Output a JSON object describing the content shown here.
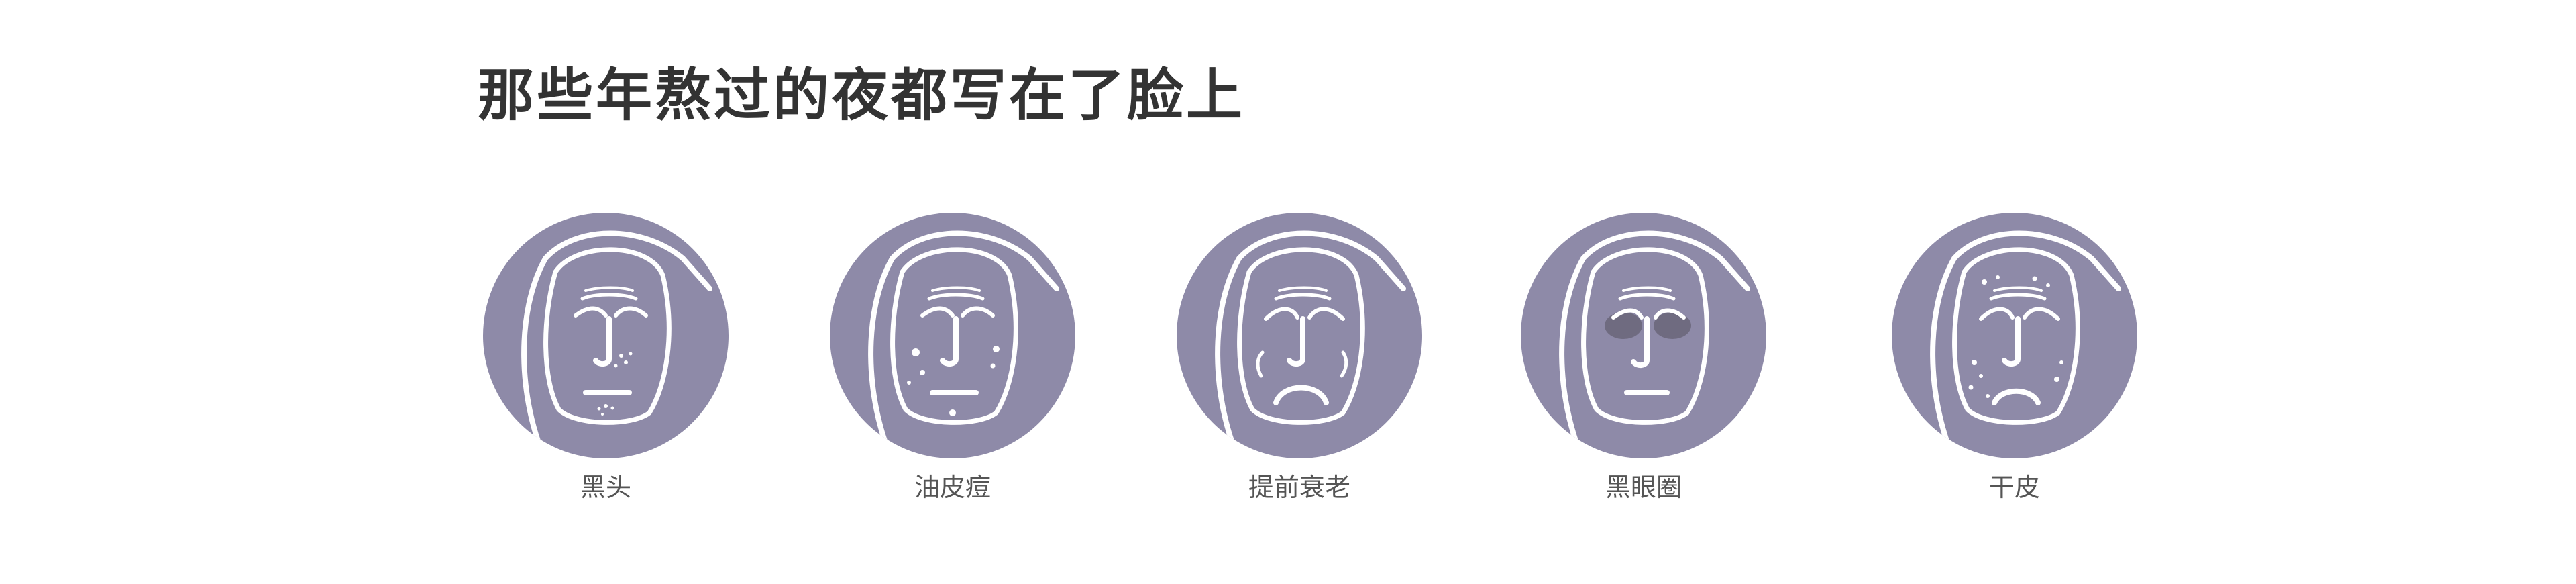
{
  "title": "那些年熬过的夜都写在了脸上",
  "colors": {
    "circle": "#8e8aa8",
    "line": "#ffffff",
    "eye_shadow": "#6f6b80",
    "title": "#333333",
    "label": "#555555"
  },
  "items": [
    {
      "label": "黑头",
      "icon": "blackhead-face-icon"
    },
    {
      "label": "油皮痘",
      "icon": "oily-acne-face-icon"
    },
    {
      "label": "提前衰老",
      "icon": "premature-aging-face-icon"
    },
    {
      "label": "黑眼圈",
      "icon": "dark-circles-face-icon"
    },
    {
      "label": "干皮",
      "icon": "dry-skin-face-icon"
    }
  ]
}
